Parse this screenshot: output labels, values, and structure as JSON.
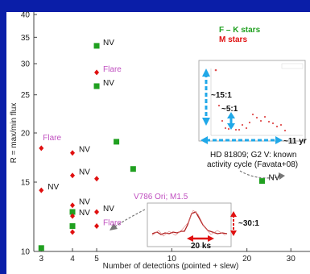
{
  "chart_data": {
    "type": "scatter",
    "xscale": "log",
    "yscale": "log",
    "xlim": [
      2.8,
      35
    ],
    "ylim": [
      10,
      40
    ],
    "xlabel": "Number of detections (pointed + slew)",
    "ylabel": "R = max/min flux",
    "xticks": [
      3,
      4,
      5,
      10,
      20,
      30
    ],
    "yticks": [
      10,
      15,
      20,
      25,
      30,
      35,
      40
    ],
    "legend": [
      {
        "name": "F – K stars",
        "color": "#20a020"
      },
      {
        "name": "M stars",
        "color": "#e01010"
      }
    ],
    "series": [
      {
        "name": "F – K stars",
        "marker": "square",
        "color": "#20a020",
        "points": [
          [
            3,
            10.2
          ],
          [
            4,
            11.6
          ],
          [
            4,
            12.6
          ],
          [
            5,
            26.3
          ],
          [
            5,
            33.3
          ],
          [
            6,
            19
          ],
          [
            7,
            16.2
          ],
          [
            23,
            15.1
          ]
        ]
      },
      {
        "name": "M stars",
        "marker": "diamond",
        "color": "#e01010",
        "points": [
          [
            3,
            14.3
          ],
          [
            3,
            18.3
          ],
          [
            4,
            11.2
          ],
          [
            4,
            12.3
          ],
          [
            4,
            13.1
          ],
          [
            4,
            15.6
          ],
          [
            4,
            17.8
          ],
          [
            5,
            11.6
          ],
          [
            5,
            12.6
          ],
          [
            5,
            15.3
          ],
          [
            5,
            28.5
          ]
        ]
      }
    ],
    "point_labels": [
      {
        "text": "NV",
        "color": "#111111",
        "x": 5,
        "y": 33.3
      },
      {
        "text": "Flare",
        "color": "#c050c0",
        "x": 5,
        "y": 28.5
      },
      {
        "text": "NV",
        "color": "#111111",
        "x": 5,
        "y": 26.3
      },
      {
        "text": "Flare",
        "color": "#c050c0",
        "x": 3,
        "y": 18.3
      },
      {
        "text": "NV",
        "color": "#111111",
        "x": 4,
        "y": 17.8
      },
      {
        "text": "NV",
        "color": "#111111",
        "x": 4,
        "y": 15.6
      },
      {
        "text": "NV",
        "color": "#111111",
        "x": 3,
        "y": 14.3
      },
      {
        "text": "NV",
        "color": "#111111",
        "x": 4,
        "y": 13.1
      },
      {
        "text": "NV",
        "color": "#111111",
        "x": 5,
        "y": 12.6
      },
      {
        "text": "NV",
        "color": "#111111",
        "x": 4,
        "y": 12.3
      },
      {
        "text": "Flare",
        "color": "#c050c0",
        "x": 5,
        "y": 11.6
      },
      {
        "text": "NV",
        "color": "#111111",
        "x": 23,
        "y": 15.1
      }
    ],
    "annotations": {
      "hd_caption_line1": "HD 81809; G2 V: known",
      "hd_caption_line2": "activity cycle (Favata+08)",
      "ratio_15": "~15:1",
      "ratio_5": "~5:1",
      "period_11yr": "~11 yr",
      "v786_label": "V786 Ori; M1.5",
      "ratio_30": "~30:1",
      "duration_20ks": "20 ks"
    }
  }
}
